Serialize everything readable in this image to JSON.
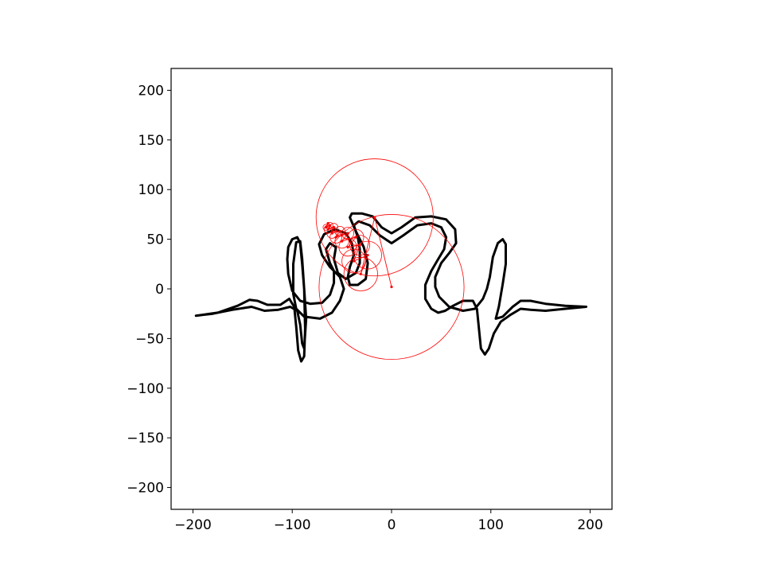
{
  "chart_data": {
    "type": "line",
    "title": "",
    "xlabel": "",
    "ylabel": "",
    "xlim": [
      -222,
      222
    ],
    "ylim": [
      -222,
      222
    ],
    "grid": false,
    "aspect": "equal",
    "x_ticks": [
      -200,
      -100,
      0,
      100,
      200
    ],
    "x_tick_labels": [
      "−200",
      "−100",
      "0",
      "100",
      "200"
    ],
    "y_ticks": [
      -200,
      -150,
      -100,
      -50,
      0,
      50,
      100,
      150,
      200
    ],
    "y_tick_labels": [
      "−200",
      "−150",
      "−100",
      "−50",
      "0",
      "50",
      "100",
      "150",
      "200"
    ],
    "colors": {
      "curve": "#000000",
      "epicycles": "#ff0000"
    },
    "series": [
      {
        "kind": "closed-curve",
        "color": "#000000",
        "points": [
          [
            -197,
            -27
          ],
          [
            -175,
            -24
          ],
          [
            -155,
            -17
          ],
          [
            -143,
            -11
          ],
          [
            -135,
            -12
          ],
          [
            -125,
            -16
          ],
          [
            -112,
            -16
          ],
          [
            -103,
            -10
          ],
          [
            -98,
            -18
          ],
          [
            -96,
            -38
          ],
          [
            -94,
            -62
          ],
          [
            -91,
            -73
          ],
          [
            -88,
            -68
          ],
          [
            -87,
            -40
          ],
          [
            -88,
            0
          ],
          [
            -90,
            30
          ],
          [
            -92,
            48
          ],
          [
            -96,
            47
          ],
          [
            -99,
            25
          ],
          [
            -99,
            -5
          ],
          [
            -96,
            -20
          ],
          [
            -88,
            -28
          ],
          [
            -72,
            -30
          ],
          [
            -60,
            -24
          ],
          [
            -52,
            -12
          ],
          [
            -48,
            0
          ],
          [
            -52,
            12
          ],
          [
            -62,
            22
          ],
          [
            -70,
            34
          ],
          [
            -73,
            45
          ],
          [
            -68,
            55
          ],
          [
            -57,
            60
          ],
          [
            -46,
            56
          ],
          [
            -40,
            46
          ],
          [
            -38,
            34
          ],
          [
            -42,
            22
          ],
          [
            -44,
            12
          ],
          [
            -42,
            4
          ],
          [
            -34,
            4
          ],
          [
            -26,
            10
          ],
          [
            -24,
            26
          ],
          [
            -28,
            42
          ],
          [
            -36,
            58
          ],
          [
            -42,
            72
          ],
          [
            -40,
            76
          ],
          [
            -30,
            76
          ],
          [
            -19,
            73
          ],
          [
            -10,
            62
          ],
          [
            0,
            56
          ],
          [
            10,
            62
          ],
          [
            24,
            72
          ],
          [
            40,
            73
          ],
          [
            55,
            70
          ],
          [
            64,
            60
          ],
          [
            65,
            46
          ],
          [
            58,
            36
          ],
          [
            50,
            26
          ],
          [
            44,
            12
          ],
          [
            44,
            2
          ],
          [
            48,
            -8
          ],
          [
            58,
            -18
          ],
          [
            72,
            -22
          ],
          [
            84,
            -20
          ],
          [
            92,
            -10
          ],
          [
            96,
            0
          ],
          [
            99,
            12
          ],
          [
            102,
            32
          ],
          [
            107,
            46
          ],
          [
            112,
            50
          ],
          [
            115,
            45
          ],
          [
            115,
            25
          ],
          [
            112,
            5
          ],
          [
            108,
            -18
          ],
          [
            105,
            -30
          ],
          [
            112,
            -28
          ],
          [
            122,
            -18
          ],
          [
            130,
            -12
          ],
          [
            140,
            -12
          ],
          [
            155,
            -15
          ],
          [
            175,
            -17
          ],
          [
            196,
            -18
          ],
          [
            175,
            -20
          ],
          [
            155,
            -22
          ],
          [
            140,
            -21
          ],
          [
            130,
            -20
          ],
          [
            120,
            -26
          ],
          [
            110,
            -33
          ],
          [
            103,
            -45
          ],
          [
            98,
            -60
          ],
          [
            94,
            -66
          ],
          [
            90,
            -60
          ],
          [
            88,
            -40
          ],
          [
            86,
            -20
          ],
          [
            82,
            -12
          ],
          [
            72,
            -12
          ],
          [
            62,
            -17
          ],
          [
            54,
            -22
          ],
          [
            47,
            -24
          ],
          [
            40,
            -20
          ],
          [
            34,
            -10
          ],
          [
            34,
            4
          ],
          [
            40,
            18
          ],
          [
            47,
            30
          ],
          [
            53,
            40
          ],
          [
            55,
            52
          ],
          [
            50,
            62
          ],
          [
            40,
            66
          ],
          [
            26,
            64
          ],
          [
            12,
            54
          ],
          [
            0,
            46
          ],
          [
            -12,
            54
          ],
          [
            -22,
            64
          ],
          [
            -33,
            68
          ],
          [
            -38,
            64
          ],
          [
            -34,
            52
          ],
          [
            -32,
            40
          ],
          [
            -32,
            26
          ],
          [
            -36,
            16
          ],
          [
            -46,
            10
          ],
          [
            -54,
            16
          ],
          [
            -58,
            30
          ],
          [
            -56,
            42
          ],
          [
            -62,
            46
          ],
          [
            -66,
            40
          ],
          [
            -62,
            26
          ],
          [
            -58,
            18
          ],
          [
            -58,
            6
          ],
          [
            -62,
            -6
          ],
          [
            -70,
            -14
          ],
          [
            -82,
            -15
          ],
          [
            -92,
            -12
          ],
          [
            -100,
            -2
          ],
          [
            -104,
            15
          ],
          [
            -105,
            30
          ],
          [
            -104,
            42
          ],
          [
            -100,
            50
          ],
          [
            -95,
            52
          ],
          [
            -92,
            46
          ],
          [
            -90,
            25
          ],
          [
            -88,
            0
          ],
          [
            -86,
            -30
          ],
          [
            -88,
            -60
          ],
          [
            -90,
            -55
          ],
          [
            -92,
            -36
          ],
          [
            -95,
            -22
          ],
          [
            -102,
            -18
          ],
          [
            -114,
            -21
          ],
          [
            -128,
            -22
          ],
          [
            -141,
            -18
          ],
          [
            -160,
            -21
          ],
          [
            -180,
            -25
          ],
          [
            -197,
            -27
          ]
        ]
      },
      {
        "kind": "epicycle-chain",
        "color": "#ff0000",
        "joints": [
          [
            0,
            2
          ],
          [
            -17,
            72
          ],
          [
            -31,
            15
          ],
          [
            -24,
            34
          ],
          [
            -38,
            28
          ],
          [
            -32,
            44
          ],
          [
            -44,
            42
          ],
          [
            -36,
            52
          ],
          [
            -50,
            48
          ],
          [
            -44,
            56
          ],
          [
            -56,
            52
          ],
          [
            -52,
            58
          ],
          [
            -60,
            56
          ],
          [
            -58,
            62
          ],
          [
            -64,
            60
          ],
          [
            -62,
            64
          ],
          [
            -66,
            62
          ],
          [
            -64,
            66
          ]
        ],
        "radii": [
          73,
          59,
          17,
          14,
          12,
          10,
          9,
          8,
          7,
          6,
          6,
          5,
          5,
          4,
          4,
          3,
          3
        ]
      }
    ]
  }
}
